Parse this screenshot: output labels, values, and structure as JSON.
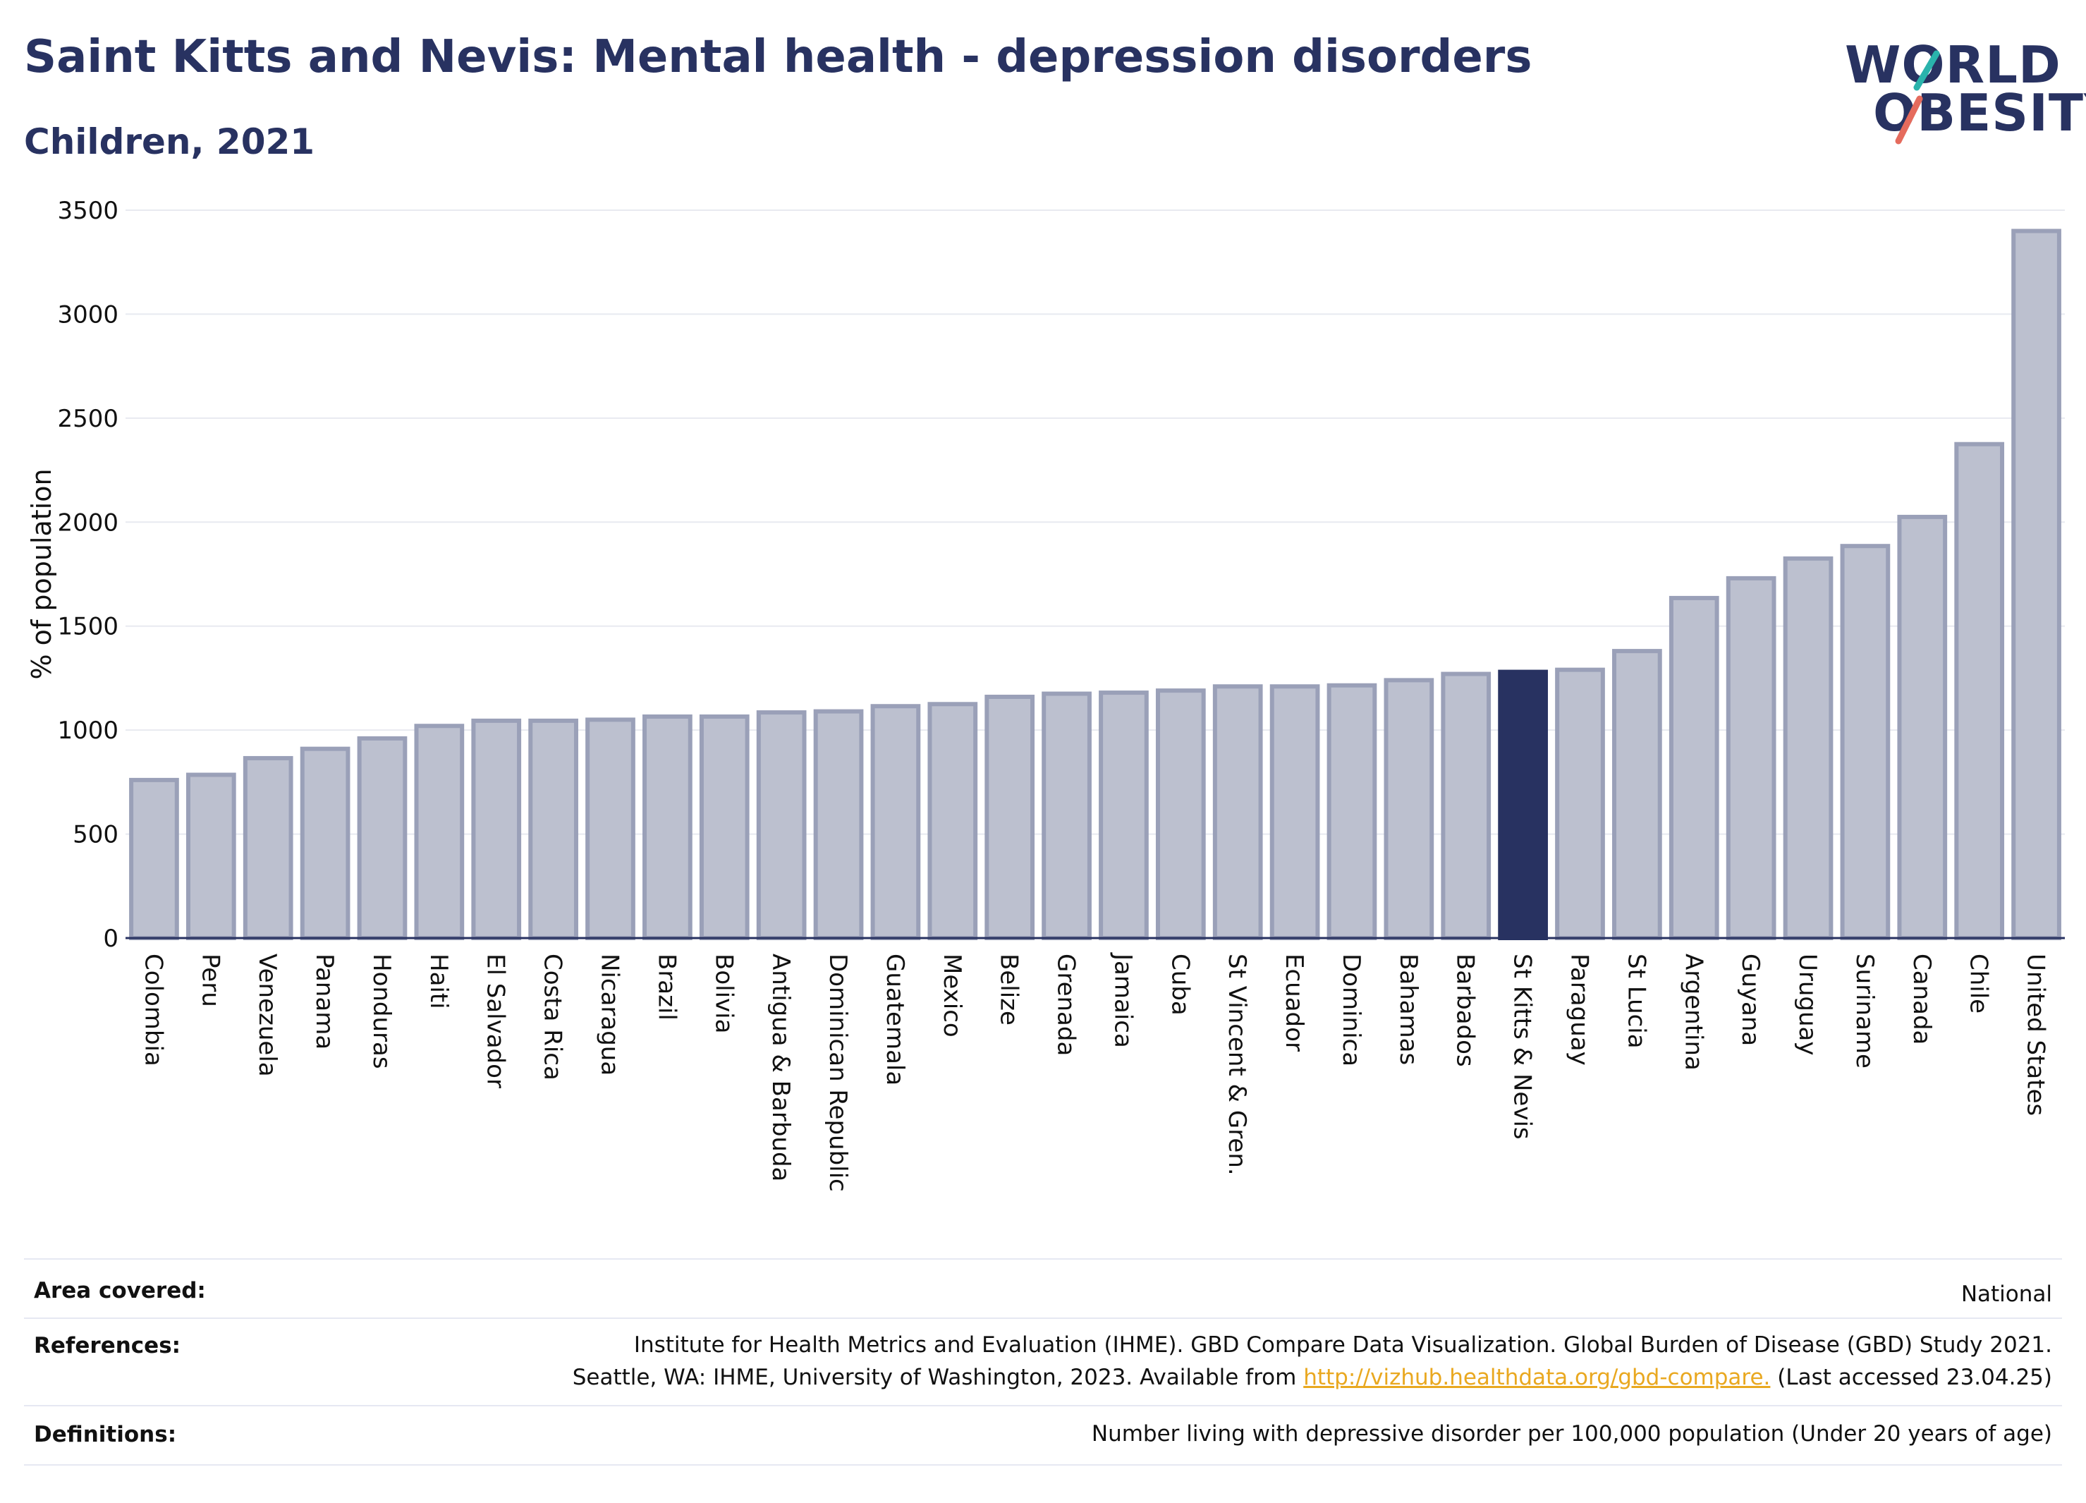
{
  "header": {
    "title": "Saint Kitts and Nevis: Mental health - depression disorders",
    "subtitle": "Children, 2021"
  },
  "logo": {
    "line1": "WORLD",
    "line2": "OBESITY",
    "slash_colors": [
      "#2ab3ac",
      "#e56b5d"
    ]
  },
  "colors": {
    "bar_default": "#bcc0cf",
    "bar_border": "#9aa0b8",
    "bar_highlight": "#283261",
    "text": "#283261"
  },
  "chart_data": {
    "type": "bar",
    "categories": [
      "Colombia",
      "Peru",
      "Venezuela",
      "Panama",
      "Honduras",
      "Haiti",
      "El Salvador",
      "Costa Rica",
      "Nicaragua",
      "Brazil",
      "Bolivia",
      "Antigua & Barbuda",
      "Dominican Republic",
      "Guatemala",
      "Mexico",
      "Belize",
      "Grenada",
      "Jamaica",
      "Cuba",
      "St Vincent & Gren.",
      "Ecuador",
      "Dominica",
      "Bahamas",
      "Barbados",
      "St Kitts & Nevis",
      "Paraguay",
      "St Lucia",
      "Argentina",
      "Guyana",
      "Uruguay",
      "Suriname",
      "Canada",
      "Chile",
      "United States"
    ],
    "values": [
      760,
      785,
      865,
      910,
      960,
      1020,
      1045,
      1045,
      1050,
      1065,
      1065,
      1085,
      1090,
      1115,
      1125,
      1160,
      1175,
      1180,
      1190,
      1210,
      1210,
      1215,
      1240,
      1270,
      1280,
      1290,
      1380,
      1635,
      1730,
      1825,
      1885,
      2025,
      2375,
      3400
    ],
    "highlight": "St Kitts & Nevis",
    "ylabel": "% of population",
    "xlabel": "",
    "ylim": [
      0,
      3500
    ],
    "yticks": [
      0,
      500,
      1000,
      1500,
      2000,
      2500,
      3000,
      3500
    ],
    "grid": true
  },
  "footer": {
    "area_label": "Area covered:",
    "area_value": "National",
    "references_label": "References:",
    "references_line1": "Institute for Health Metrics and Evaluation (IHME). GBD Compare Data Visualization. Global Burden of Disease (GBD) Study 2021.",
    "references_line2_pre": "Seattle, WA: IHME, University of Washington, 2023. Available from ",
    "references_link": "http://vizhub.healthdata.org/gbd-compare.",
    "references_line2_post": " (Last accessed 23.04.25)",
    "definitions_label": "Definitions:",
    "definitions_value": "Number living with depressive disorder per 100,000 population (Under 20 years of age)"
  }
}
